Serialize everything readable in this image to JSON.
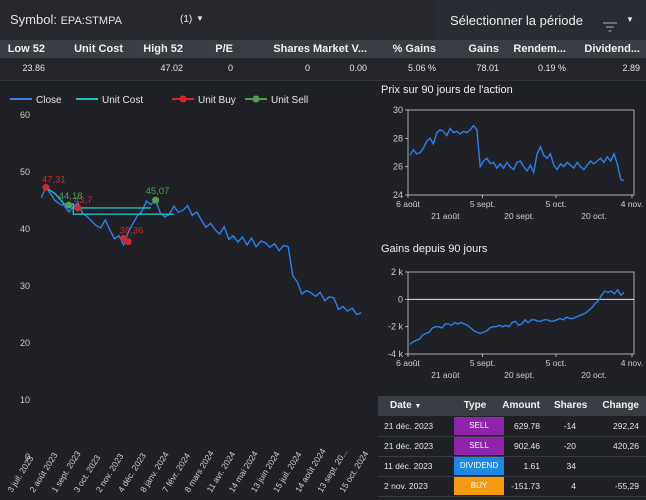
{
  "header": {
    "symbol_label": "Symbol:",
    "symbol_value": "EPA:STMPA",
    "symbol_count": "(1)",
    "period_label": "Sélectionner la période"
  },
  "stats": {
    "headers": [
      "Low 52",
      "Unit Cost",
      "High 52",
      "P/E",
      "Shares",
      "Market V...",
      "% Gains",
      "Gains",
      "Rendem...",
      "Dividend..."
    ],
    "values": [
      "23.86",
      "",
      "47.02",
      "0",
      "0",
      "0.00",
      "5.06 %",
      "78.01",
      "0.19 %",
      "2.89"
    ]
  },
  "chart_data": [
    {
      "type": "line",
      "title": "",
      "legend": [
        "Close",
        "Unit Cost",
        "Unit Buy",
        "Unit Sell"
      ],
      "legend_position": "top-left",
      "colors": {
        "close": "#2f80ed",
        "unit_cost": "#20c0c8",
        "unit_buy": "#d42a2a",
        "unit_sell": "#4fa04f"
      },
      "ylim": [
        0,
        60
      ],
      "yticks": [
        0,
        10,
        20,
        30,
        40,
        50,
        60
      ],
      "xticks": [
        "3 juil. 2023",
        "2 août 2023",
        "1 sept. 2023",
        "3 oct. 2023",
        "2 nov. 2023",
        "4 déc. 2023",
        "8 janv. 2024",
        "7 févr. 2024",
        "8 mars 2024",
        "11 avr. 2024",
        "14 mai 2024",
        "13 juin 2024",
        "15 juil. 2024",
        "14 août 2024",
        "13 sept. 20...",
        "15 oct. 2024"
      ],
      "grid": false,
      "close": [
        [
          "2023-07-03",
          45.5
        ],
        [
          "2023-07-10",
          47.3
        ],
        [
          "2023-07-17",
          46.2
        ],
        [
          "2023-07-24",
          45.0
        ],
        [
          "2023-07-31",
          44.4
        ],
        [
          "2023-08-07",
          44.1
        ],
        [
          "2023-08-14",
          43.0
        ],
        [
          "2023-08-21",
          43.9
        ],
        [
          "2023-08-28",
          44.6
        ],
        [
          "2023-09-04",
          42.8
        ],
        [
          "2023-09-11",
          42.2
        ],
        [
          "2023-09-18",
          41.4
        ],
        [
          "2023-09-25",
          40.6
        ],
        [
          "2023-10-02",
          40.2
        ],
        [
          "2023-10-09",
          41.6
        ],
        [
          "2023-10-16",
          39.8
        ],
        [
          "2023-10-23",
          38.3
        ],
        [
          "2023-10-30",
          38.8
        ],
        [
          "2023-11-06",
          37.2
        ],
        [
          "2023-11-13",
          39.4
        ],
        [
          "2023-11-20",
          40.9
        ],
        [
          "2023-11-27",
          42.3
        ],
        [
          "2023-12-04",
          43.1
        ],
        [
          "2023-12-11",
          44.9
        ],
        [
          "2023-12-18",
          44.3
        ],
        [
          "2023-12-25",
          45.1
        ],
        [
          "2024-01-01",
          42.8
        ],
        [
          "2024-01-08",
          42.1
        ],
        [
          "2024-01-15",
          42.6
        ],
        [
          "2024-01-22",
          44.0
        ],
        [
          "2024-01-29",
          42.9
        ],
        [
          "2024-02-05",
          43.3
        ],
        [
          "2024-02-12",
          44.1
        ],
        [
          "2024-02-19",
          42.4
        ],
        [
          "2024-02-26",
          43.0
        ],
        [
          "2024-03-04",
          41.6
        ],
        [
          "2024-03-11",
          40.3
        ],
        [
          "2024-03-18",
          41.0
        ],
        [
          "2024-03-25",
          39.9
        ],
        [
          "2024-04-01",
          39.1
        ],
        [
          "2024-04-08",
          40.4
        ],
        [
          "2024-04-15",
          38.2
        ],
        [
          "2024-04-22",
          38.8
        ],
        [
          "2024-04-29",
          37.7
        ],
        [
          "2024-05-06",
          38.6
        ],
        [
          "2024-05-13",
          37.2
        ],
        [
          "2024-05-20",
          38.4
        ],
        [
          "2024-05-27",
          36.9
        ],
        [
          "2024-06-03",
          37.9
        ],
        [
          "2024-06-10",
          37.6
        ],
        [
          "2024-06-17",
          36.8
        ],
        [
          "2024-06-24",
          37.4
        ],
        [
          "2024-07-01",
          36.2
        ],
        [
          "2024-07-08",
          37.1
        ],
        [
          "2024-07-15",
          36.9
        ],
        [
          "2024-07-22",
          31.8
        ],
        [
          "2024-07-29",
          30.7
        ],
        [
          "2024-08-05",
          28.6
        ],
        [
          "2024-08-12",
          29.2
        ],
        [
          "2024-08-19",
          28.8
        ],
        [
          "2024-08-26",
          28.2
        ],
        [
          "2024-09-02",
          28.9
        ],
        [
          "2024-09-09",
          27.4
        ],
        [
          "2024-09-16",
          28.1
        ],
        [
          "2024-09-23",
          27.9
        ],
        [
          "2024-09-30",
          25.9
        ],
        [
          "2024-10-07",
          26.4
        ],
        [
          "2024-10-14",
          25.6
        ],
        [
          "2024-10-21",
          26.1
        ],
        [
          "2024-10-28",
          25.0
        ],
        [
          "2024-11-04",
          25.3
        ]
      ],
      "unit_cost": [
        [
          [
            "2023-07-10",
            47.3
          ],
          [
            "2023-07-24",
            46.2
          ],
          [
            "2023-08-07",
            44.4
          ],
          [
            "2023-08-21",
            44.4
          ],
          [
            "2023-08-21",
            43.7
          ],
          [
            "2023-12-18",
            43.7
          ]
        ],
        [
          [
            "2023-08-21",
            43.7
          ],
          [
            "2023-08-21",
            42.6
          ],
          [
            "2024-01-22",
            42.6
          ]
        ]
      ],
      "buy_points": [
        {
          "date": "2023-07-10",
          "value": 47.31,
          "label": "47,31"
        },
        {
          "date": "2023-08-28",
          "value": 43.7,
          "label": "43,7"
        },
        {
          "date": "2023-11-06",
          "value": 38.36,
          "label": "38,36"
        },
        {
          "date": "2023-11-13",
          "value": 37.77,
          "label": ""
        }
      ],
      "sell_points": [
        {
          "date": "2023-08-14",
          "value": 44.18,
          "label": "44,18"
        },
        {
          "date": "2023-12-25",
          "value": 45.07,
          "label": "45,07"
        }
      ]
    },
    {
      "type": "line",
      "title": "Prix sur 90 jours de l'action",
      "ylim": [
        24,
        30
      ],
      "yticks": [
        24,
        26,
        28,
        30
      ],
      "xticks": [
        "6 août",
        "5 sept.",
        "5 oct.",
        "4 nov."
      ],
      "xticks_minor": [
        "21 août",
        "20 sept.",
        "20 oct."
      ],
      "values": [
        26.8,
        27.2,
        26.9,
        27.0,
        27.3,
        27.8,
        28.0,
        27.6,
        28.4,
        28.6,
        28.5,
        28.2,
        28.7,
        28.4,
        28.5,
        28.3,
        28.5,
        28.4,
        28.6,
        28.9,
        28.6,
        26.0,
        26.4,
        26.6,
        26.2,
        26.3,
        25.9,
        26.2,
        25.9,
        26.3,
        26.0,
        25.8,
        26.3,
        26.4,
        26.0,
        25.7,
        26.1,
        25.6,
        26.9,
        27.4,
        26.8,
        26.6,
        26.9,
        26.1,
        25.8,
        26.2,
        26.0,
        26.3,
        26.1,
        25.9,
        26.3,
        26.0,
        25.8,
        26.1,
        26.4,
        26.2,
        26.4,
        26.6,
        26.3,
        26.7,
        26.4,
        26.9,
        26.2,
        25.1,
        25.0
      ]
    },
    {
      "type": "line",
      "title": "Gains depuis 90 jours",
      "ylim": [
        -4000,
        2000
      ],
      "yticks": [
        -4000,
        -2000,
        0,
        2000
      ],
      "ytick_labels": [
        "-4 k",
        "-2 k",
        "0",
        "2 k"
      ],
      "xticks": [
        "6 août",
        "5 sept.",
        "5 oct.",
        "4 nov."
      ],
      "xticks_minor": [
        "21 août",
        "20 sept.",
        "20 oct."
      ],
      "values": [
        -3300,
        -3100,
        -3000,
        -2900,
        -2600,
        -2500,
        -2400,
        -2100,
        -2000,
        -2000,
        -2100,
        -1800,
        -1800,
        -1900,
        -1700,
        -1800,
        -1700,
        -1800,
        -1900,
        -2100,
        -2300,
        -2400,
        -2500,
        -2400,
        -2300,
        -2100,
        -2000,
        -2000,
        -1900,
        -2000,
        -1900,
        -2000,
        -1700,
        -1600,
        -1900,
        -1800,
        -1500,
        -1700,
        -1500,
        -1500,
        -1600,
        -1600,
        -1500,
        -1500,
        -1600,
        -1600,
        -1500,
        -1400,
        -1500,
        -1300,
        -1400,
        -1400,
        -1300,
        -1200,
        -1100,
        -1000,
        -800,
        -600,
        -300,
        -100,
        300,
        600,
        500,
        600,
        400,
        700,
        300,
        500
      ]
    }
  ],
  "transactions": {
    "headers": {
      "date": "Date",
      "type": "Type",
      "amount": "Amount",
      "shares": "Shares",
      "change": "Change"
    },
    "rows": [
      {
        "date": "21 déc. 2023",
        "type": "SELL",
        "amount": "629.78",
        "shares": "-14",
        "change": "292,24",
        "color": "#8e24aa"
      },
      {
        "date": "21 déc. 2023",
        "type": "SELL",
        "amount": "902.46",
        "shares": "-20",
        "change": "420,26",
        "color": "#8e24aa"
      },
      {
        "date": "11 déc. 2023",
        "type": "DIVIDEND",
        "amount": "1.61",
        "shares": "34",
        "change": "",
        "color": "#1e88e5"
      },
      {
        "date": "2 nov. 2023",
        "type": "BUY",
        "amount": "-151.73",
        "shares": "4",
        "change": "-55,29",
        "color": "#f39c12"
      }
    ]
  }
}
